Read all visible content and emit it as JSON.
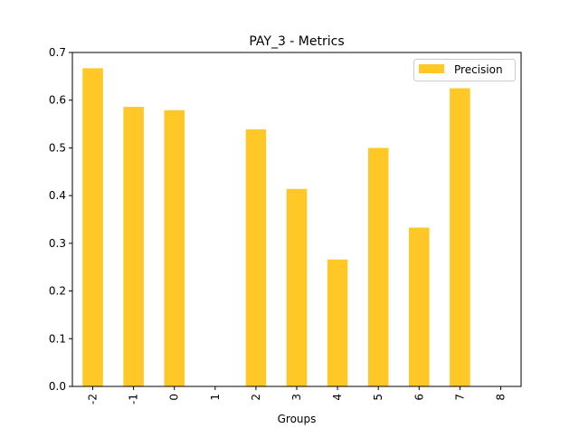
{
  "chart_data": {
    "type": "bar",
    "title": "PAY_3 - Metrics",
    "xlabel": "Groups",
    "ylabel": "",
    "categories": [
      "-2",
      "-1",
      "0",
      "1",
      "2",
      "3",
      "4",
      "5",
      "6",
      "7",
      "8"
    ],
    "series": [
      {
        "name": "Precision",
        "color": "#ffc826",
        "values": [
          0.667,
          0.586,
          0.579,
          0.0,
          0.539,
          0.414,
          0.266,
          0.5,
          0.333,
          0.625,
          0.0
        ]
      }
    ],
    "ylim": [
      0,
      0.7
    ],
    "yticks": [
      "0.0",
      "0.1",
      "0.2",
      "0.3",
      "0.4",
      "0.5",
      "0.6",
      "0.7"
    ],
    "grid": false,
    "legend": "top-right"
  }
}
